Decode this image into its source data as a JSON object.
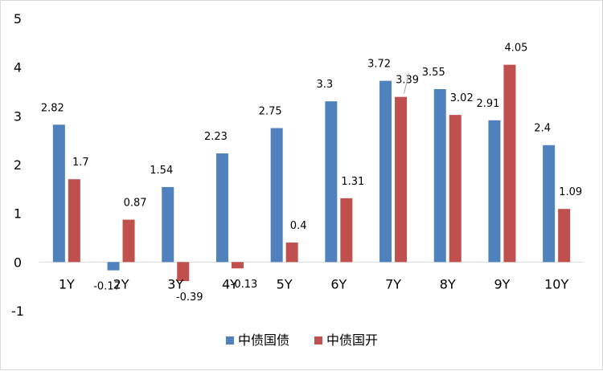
{
  "chart_data": {
    "type": "bar",
    "categories": [
      "1Y",
      "2Y",
      "3Y",
      "4Y",
      "5Y",
      "6Y",
      "7Y",
      "8Y",
      "9Y",
      "10Y"
    ],
    "series": [
      {
        "name": "中债国债",
        "color": "#4f81bd",
        "values": [
          2.82,
          -0.17,
          1.54,
          2.23,
          2.75,
          3.3,
          3.72,
          3.55,
          2.91,
          2.4
        ]
      },
      {
        "name": "中债国开",
        "color": "#c0504d",
        "values": [
          1.7,
          0.87,
          -0.39,
          -0.13,
          0.4,
          1.31,
          3.39,
          3.02,
          4.05,
          1.09
        ]
      }
    ],
    "ylim": [
      -1,
      5
    ],
    "yticks": [
      -1,
      0,
      1,
      2,
      3,
      4,
      5
    ],
    "legend": "bottom",
    "grid": false
  }
}
